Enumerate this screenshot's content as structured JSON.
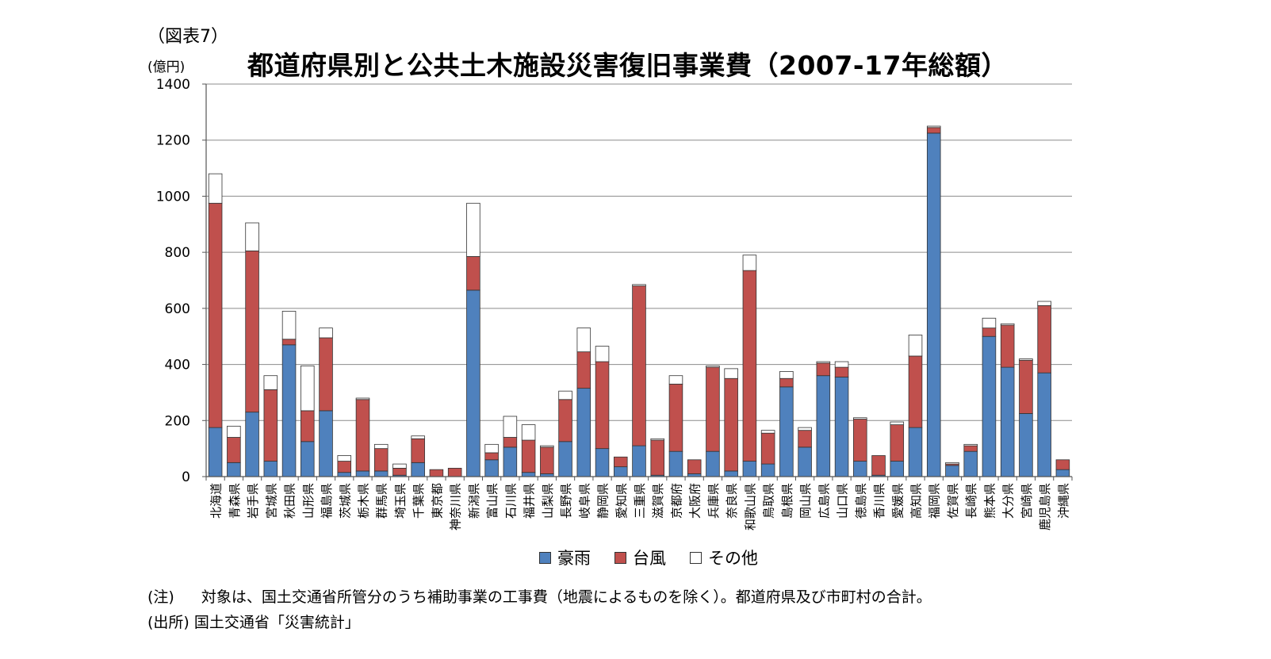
{
  "figure_label": "（図表7）",
  "unit_label": "(億円)",
  "note_prefix": "(注)",
  "note_text": "対象は、国土交通省所管分のうち補助事業の工事費（地震によるものを除く）。都道府県及び市町村の合計。",
  "source_text": "(出所) 国土交通省「災害統計」",
  "colors": {
    "heavy_rain": "#4F81BD",
    "typhoon": "#C0504D",
    "other": "#FFFFFF",
    "outline": "#333333"
  },
  "chart_data": {
    "type": "bar",
    "stacked": true,
    "title": "都道府県別と公共土木施設災害復旧事業費（2007-17年総額）",
    "xlabel": "",
    "ylabel": "(億円)",
    "ylim": [
      0,
      1400
    ],
    "yticks": [
      0,
      200,
      400,
      600,
      800,
      1000,
      1200,
      1400
    ],
    "grid": true,
    "legend": "bottom",
    "categories": [
      "北海道",
      "青森県",
      "岩手県",
      "宮城県",
      "秋田県",
      "山形県",
      "福島県",
      "茨城県",
      "栃木県",
      "群馬県",
      "埼玉県",
      "千葉県",
      "東京都",
      "神奈川県",
      "新潟県",
      "富山県",
      "石川県",
      "福井県",
      "山梨県",
      "長野県",
      "岐阜県",
      "静岡県",
      "愛知県",
      "三重県",
      "滋賀県",
      "京都府",
      "大阪府",
      "兵庫県",
      "奈良県",
      "和歌山県",
      "鳥取県",
      "島根県",
      "岡山県",
      "広島県",
      "山口県",
      "徳島県",
      "香川県",
      "愛媛県",
      "高知県",
      "福岡県",
      "佐賀県",
      "長崎県",
      "熊本県",
      "大分県",
      "宮崎県",
      "鹿児島県",
      "沖縄県"
    ],
    "series": [
      {
        "name": "豪雨",
        "color": "#4F81BD",
        "values": [
          175,
          50,
          230,
          55,
          470,
          125,
          235,
          15,
          20,
          20,
          5,
          50,
          0,
          0,
          665,
          60,
          105,
          15,
          10,
          125,
          315,
          100,
          35,
          110,
          5,
          90,
          10,
          90,
          20,
          55,
          45,
          320,
          105,
          360,
          355,
          55,
          5,
          55,
          175,
          1225,
          40,
          90,
          500,
          390,
          225,
          370,
          25
        ]
      },
      {
        "name": "台風",
        "color": "#C0504D",
        "values": [
          800,
          90,
          575,
          255,
          20,
          110,
          260,
          40,
          255,
          80,
          25,
          85,
          25,
          30,
          120,
          25,
          35,
          115,
          95,
          150,
          130,
          310,
          35,
          570,
          125,
          240,
          50,
          300,
          330,
          680,
          110,
          30,
          60,
          45,
          35,
          150,
          70,
          130,
          255,
          20,
          5,
          20,
          30,
          150,
          190,
          240,
          35
        ]
      },
      {
        "name": "その他",
        "color": "#FFFFFF",
        "values": [
          105,
          40,
          100,
          50,
          100,
          160,
          35,
          20,
          5,
          15,
          15,
          10,
          0,
          0,
          190,
          30,
          75,
          55,
          5,
          30,
          85,
          55,
          0,
          5,
          5,
          30,
          0,
          5,
          35,
          55,
          10,
          25,
          10,
          5,
          20,
          5,
          0,
          10,
          75,
          5,
          5,
          5,
          35,
          5,
          5,
          15,
          0
        ]
      }
    ]
  }
}
